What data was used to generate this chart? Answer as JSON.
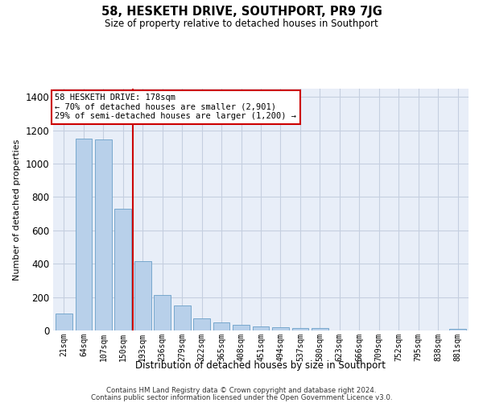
{
  "title": "58, HESKETH DRIVE, SOUTHPORT, PR9 7JG",
  "subtitle": "Size of property relative to detached houses in Southport",
  "xlabel": "Distribution of detached houses by size in Southport",
  "ylabel": "Number of detached properties",
  "categories": [
    "21sqm",
    "64sqm",
    "107sqm",
    "150sqm",
    "193sqm",
    "236sqm",
    "279sqm",
    "322sqm",
    "365sqm",
    "408sqm",
    "451sqm",
    "494sqm",
    "537sqm",
    "580sqm",
    "623sqm",
    "666sqm",
    "709sqm",
    "752sqm",
    "795sqm",
    "838sqm",
    "881sqm"
  ],
  "bar_heights": [
    100,
    1150,
    1145,
    730,
    415,
    215,
    150,
    72,
    50,
    33,
    22,
    17,
    14,
    14,
    0,
    0,
    0,
    0,
    0,
    0,
    12
  ],
  "bar_color": "#b8d0ea",
  "bar_edge_color": "#6a9fc8",
  "vline_pos": 3.5,
  "vline_color": "#cc0000",
  "annotation_text": "58 HESKETH DRIVE: 178sqm\n← 70% of detached houses are smaller (2,901)\n29% of semi-detached houses are larger (1,200) →",
  "ylim": [
    0,
    1450
  ],
  "yticks": [
    0,
    200,
    400,
    600,
    800,
    1000,
    1200,
    1400
  ],
  "bg_color": "#e8eef8",
  "grid_color": "#c5cfe0",
  "footer_line1": "Contains HM Land Registry data © Crown copyright and database right 2024.",
  "footer_line2": "Contains public sector information licensed under the Open Government Licence v3.0."
}
